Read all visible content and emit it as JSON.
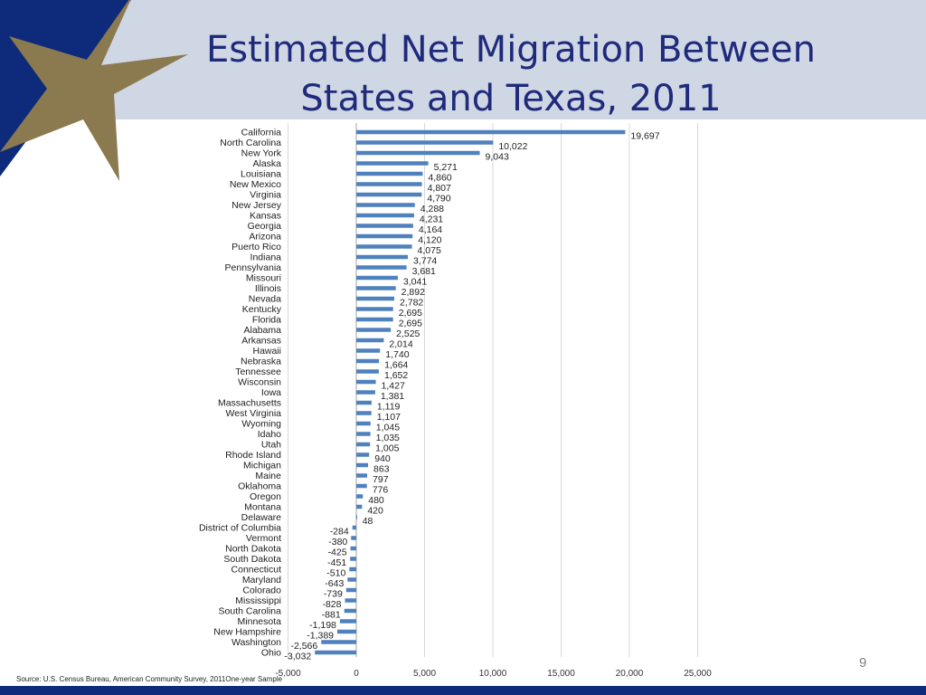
{
  "slide": {
    "title_line1": "Estimated Net Migration Between",
    "title_line2": "States and Texas, 2011",
    "source": "Source: U.S. Census Bureau, American Community Survey, 2011One-year Sample",
    "page_number": "9"
  },
  "colors": {
    "bar": "#4f81bd",
    "title": "#1f2a7a",
    "header_band": "#cfd6e4",
    "star": "#8b7a4f",
    "corner": "#0d2b7a",
    "gridline": "#d9d9d9"
  },
  "chart_data": {
    "type": "bar",
    "orientation": "horizontal",
    "title": "Estimated Net Migration Between States and Texas, 2011",
    "xlabel": "",
    "ylabel": "",
    "xlim": [
      -5000,
      25000
    ],
    "x_ticks": [
      -5000,
      0,
      5000,
      10000,
      15000,
      20000,
      25000
    ],
    "x_tick_labels": [
      "-5,000",
      "0",
      "5,000",
      "10,000",
      "15,000",
      "20,000",
      "25,000"
    ],
    "grid": "vertical",
    "categories": [
      "California",
      "North Carolina",
      "New York",
      "Alaska",
      "Louisiana",
      "New Mexico",
      "Virginia",
      "New Jersey",
      "Kansas",
      "Georgia",
      "Arizona",
      "Puerto Rico",
      "Indiana",
      "Pennsylvania",
      "Missouri",
      "Illinois",
      "Nevada",
      "Kentucky",
      "Florida",
      "Alabama",
      "Arkansas",
      "Hawaii",
      "Nebraska",
      "Tennessee",
      "Wisconsin",
      "Iowa",
      "Massachusetts",
      "West Virginia",
      "Wyoming",
      "Idaho",
      "Utah",
      "Rhode Island",
      "Michigan",
      "Maine",
      "Oklahoma",
      "Oregon",
      "Montana",
      "Delaware",
      "District of Columbia",
      "Vermont",
      "North Dakota",
      "South Dakota",
      "Connecticut",
      "Maryland",
      "Colorado",
      "Mississippi",
      "South Carolina",
      "Minnesota",
      "New Hampshire",
      "Washington",
      "Ohio"
    ],
    "values": [
      19697,
      10022,
      9043,
      5271,
      4860,
      4807,
      4790,
      4288,
      4231,
      4164,
      4120,
      4075,
      3774,
      3681,
      3041,
      2892,
      2782,
      2695,
      2695,
      2525,
      2014,
      1740,
      1664,
      1652,
      1427,
      1381,
      1119,
      1107,
      1045,
      1035,
      1005,
      940,
      863,
      797,
      776,
      480,
      420,
      48,
      -284,
      -380,
      -425,
      -451,
      -510,
      -643,
      -739,
      -828,
      -881,
      -1198,
      -1389,
      -2566,
      -3032
    ],
    "value_labels": [
      "19,697",
      "10,022",
      "9,043",
      "5,271",
      "4,860",
      "4,807",
      "4,790",
      "4,288",
      "4,231",
      "4,164",
      "4,120",
      "4,075",
      "3,774",
      "3,681",
      "3,041",
      "2,892",
      "2,782",
      "2,695",
      "2,695",
      "2,525",
      "2,014",
      "1,740",
      "1,664",
      "1,652",
      "1,427",
      "1,381",
      "1,119",
      "1,107",
      "1,045",
      "1,035",
      "1,005",
      "940",
      "863",
      "797",
      "776",
      "480",
      "420",
      "48",
      "-284",
      "-380",
      "-425",
      "-451",
      "-510",
      "-643",
      "-739",
      "-828",
      "-881",
      "-1,198",
      "-1,389",
      "-2,566",
      "-3,032"
    ]
  }
}
